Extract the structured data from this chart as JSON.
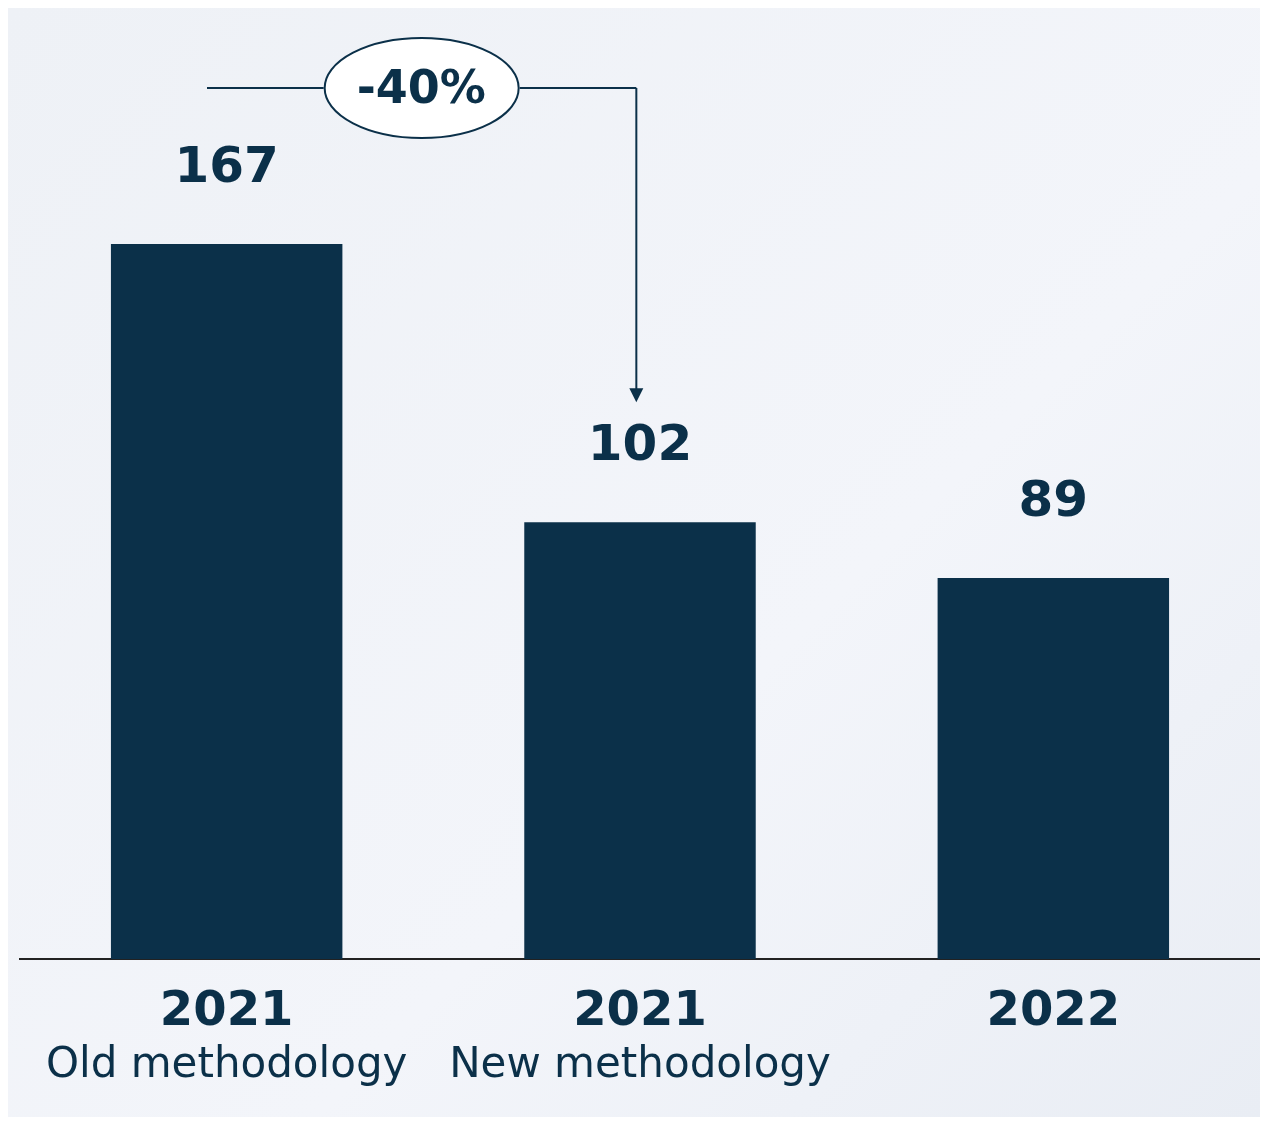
{
  "chart_data": {
    "type": "bar",
    "categories": [
      "2021\nOld methodology",
      "2021\nNew methodology",
      "2022"
    ],
    "values": [
      167,
      102,
      89
    ],
    "color": "#0b3049",
    "data_labels": true,
    "tick_labels": "x",
    "annotations": [
      "-40%"
    ]
  }
}
